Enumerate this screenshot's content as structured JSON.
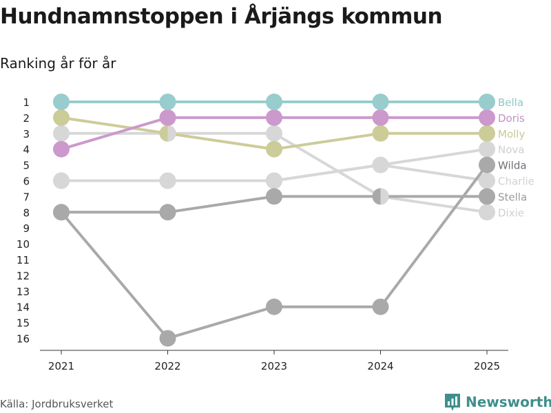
{
  "title": "Hundnamnstoppen i Årjängs kommun",
  "subtitle": "Ranking år för år",
  "source": "Källa: Jordbruksverket",
  "brand": "Newsworthy",
  "colors": {
    "accent": "#3f8f8c"
  },
  "chart_data": {
    "type": "line",
    "x": [
      "2021",
      "2022",
      "2023",
      "2024",
      "2025"
    ],
    "y_ticks": [
      "1",
      "2",
      "3",
      "4",
      "5",
      "6",
      "7",
      "8",
      "9",
      "10",
      "11",
      "12",
      "13",
      "14",
      "15",
      "16"
    ],
    "ylim": [
      1,
      16
    ],
    "y_inverted": true,
    "series": [
      {
        "name": "Charlie",
        "values": [
          6,
          6,
          6,
          5,
          6
        ],
        "color": "#d7d7d7",
        "label_color": "#d0d0d0"
      },
      {
        "name": "Dixie",
        "values": [
          3,
          3,
          3,
          7,
          8
        ],
        "color": "#d7d7d7",
        "label_color": "#cfcfcf"
      },
      {
        "name": "Nova",
        "values": [
          6,
          6,
          6,
          5,
          4
        ],
        "color": "#d7d7d7",
        "label_color": "#cfcfcf"
      },
      {
        "name": "Stella",
        "values": [
          8,
          8,
          7,
          7,
          7
        ],
        "color": "#a9a9a9",
        "label_color": "#999999"
      },
      {
        "name": "Wilda",
        "values": [
          8,
          16,
          14,
          14,
          5
        ],
        "color": "#a9a9a9",
        "label_color": "#6f6f78"
      },
      {
        "name": "Molly",
        "values": [
          2,
          3,
          4,
          3,
          3
        ],
        "color": "#cccc99",
        "label_color": "#c8c896"
      },
      {
        "name": "Doris",
        "values": [
          4,
          2,
          2,
          2,
          2
        ],
        "color": "#cc99cc",
        "label_color": "#c48fc4"
      },
      {
        "name": "Bella",
        "values": [
          1,
          1,
          1,
          1,
          1
        ],
        "color": "#99cccc",
        "label_color": "#8ec6c6"
      }
    ],
    "final_label_order": [
      "Bella",
      "Doris",
      "Molly",
      "Nova",
      "Wilda",
      "Charlie",
      "Stella",
      "Dixie"
    ],
    "xlabel": "",
    "ylabel": "",
    "grid": false,
    "legend": "right"
  }
}
